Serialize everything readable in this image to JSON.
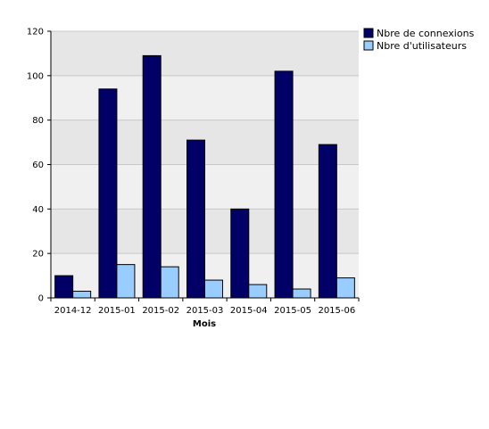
{
  "chart_data": {
    "type": "bar",
    "title": "",
    "xlabel": "Mois",
    "ylabel": "",
    "categories": [
      "2014-12",
      "2015-01",
      "2015-02",
      "2015-03",
      "2015-04",
      "2015-05",
      "2015-06"
    ],
    "series": [
      {
        "name": "Nbre de connexions",
        "color": "#000066",
        "values": [
          10,
          94,
          109,
          71,
          40,
          102,
          69
        ]
      },
      {
        "name": "Nbre d'utilisateurs",
        "color": "#99ccff",
        "values": [
          3,
          15,
          14,
          8,
          6,
          4,
          9
        ]
      }
    ],
    "ylim": [
      0,
      120
    ],
    "yticks": [
      0,
      20,
      40,
      60,
      80,
      100,
      120
    ],
    "grid": true,
    "band_colors": [
      "#f0f0f0",
      "#e6e6e6"
    ],
    "legend_position": "top-right"
  }
}
